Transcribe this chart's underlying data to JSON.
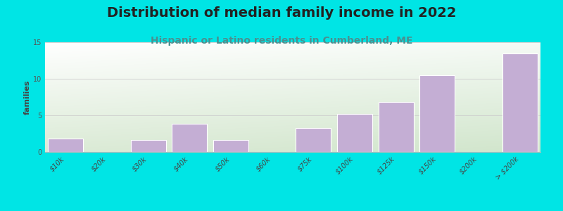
{
  "title": "Distribution of median family income in 2022",
  "subtitle": "Hispanic or Latino residents in Cumberland, ME",
  "categories": [
    "$10k",
    "$20k",
    "$30k",
    "$40k",
    "$50k",
    "$60k",
    "$75k",
    "$100k",
    "$125k",
    "$150k",
    "$200k",
    "> $200k"
  ],
  "values": [
    1.8,
    0.0,
    1.6,
    3.8,
    1.6,
    0.0,
    3.3,
    5.2,
    6.8,
    10.5,
    0.0,
    13.5
  ],
  "bar_color": "#C4AED4",
  "background_color": "#00E5E5",
  "chart_bg_top_left": "#F0F5EC",
  "chart_bg_top_right": "#FFFFFF",
  "chart_bg_bottom": "#E8F0E0",
  "ylabel": "families",
  "ylim": [
    0,
    15
  ],
  "yticks": [
    0,
    5,
    10,
    15
  ],
  "title_fontsize": 14,
  "subtitle_fontsize": 10,
  "subtitle_color": "#4A9090",
  "ylabel_fontsize": 8,
  "tick_fontsize": 7
}
